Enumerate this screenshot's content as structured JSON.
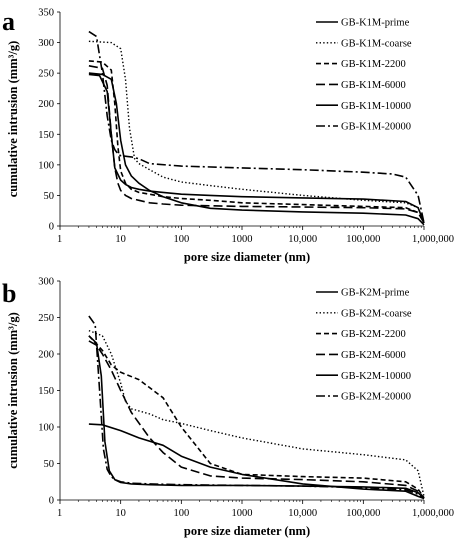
{
  "chart_data": [
    {
      "panel": "a",
      "type": "line",
      "xlabel": "pore size diameter (nm)",
      "ylabel": "cumulative intrusion (mm³/g)",
      "xscale": "log",
      "xlim": [
        1,
        1000000
      ],
      "ylim": [
        0,
        350
      ],
      "xticks": [
        1,
        10,
        100,
        1000,
        10000,
        100000,
        1000000
      ],
      "xtick_labels": [
        "1",
        "10",
        "100",
        "1000",
        "10,000",
        "100,000",
        "1,000,000"
      ],
      "yticks": [
        0,
        50,
        100,
        150,
        200,
        250,
        300,
        350
      ],
      "legend_position": "top-right",
      "grid": false,
      "series": [
        {
          "name": "GB-K1M-prime",
          "dash": "solid",
          "x": [
            3,
            5,
            7,
            8.5,
            10,
            12,
            15,
            20,
            30,
            50,
            100,
            300,
            1000,
            10000,
            100000,
            500000,
            800000,
            1000000
          ],
          "y": [
            250,
            248,
            240,
            200,
            140,
            100,
            82,
            70,
            58,
            48,
            38,
            29,
            26,
            23,
            21,
            18,
            12,
            2
          ]
        },
        {
          "name": "GB-K1M-coarse",
          "dash": "dot",
          "x": [
            3,
            7,
            10,
            12,
            14,
            17,
            20,
            30,
            50,
            100,
            300,
            1000,
            10000,
            100000,
            500000,
            800000,
            1000000
          ],
          "y": [
            302,
            300,
            290,
            240,
            160,
            110,
            102,
            92,
            80,
            72,
            66,
            60,
            50,
            42,
            38,
            30,
            5
          ]
        },
        {
          "name": "GB-K1M-2200",
          "dash": "medium-dash",
          "x": [
            3,
            5,
            7,
            8,
            9,
            10,
            12,
            15,
            20,
            30,
            50,
            100,
            300,
            1000,
            10000,
            100000,
            500000,
            800000,
            1000000
          ],
          "y": [
            270,
            268,
            255,
            200,
            130,
            90,
            70,
            60,
            55,
            52,
            48,
            45,
            42,
            38,
            35,
            32,
            30,
            22,
            5
          ]
        },
        {
          "name": "GB-K1M-6000",
          "dash": "long-dash",
          "x": [
            3,
            5,
            6,
            7,
            8,
            9,
            10,
            12,
            15,
            20,
            30,
            50,
            100,
            300,
            1000,
            10000,
            100000,
            500000,
            800000,
            1000000
          ],
          "y": [
            262,
            258,
            230,
            150,
            95,
            70,
            58,
            50,
            45,
            42,
            38,
            36,
            34,
            33,
            32,
            31,
            30,
            28,
            22,
            5
          ]
        },
        {
          "name": "GB-K1M-10000",
          "dash": "solid",
          "x": [
            3,
            4.5,
            6,
            7,
            8,
            10,
            12,
            15,
            20,
            30,
            50,
            100,
            300,
            1000,
            10000,
            100000,
            500000,
            800000,
            1000000
          ],
          "y": [
            248,
            246,
            220,
            150,
            95,
            75,
            68,
            63,
            60,
            57,
            55,
            52,
            50,
            48,
            46,
            44,
            40,
            30,
            5
          ]
        },
        {
          "name": "GB-K1M-20000",
          "dash": "dash-dot",
          "x": [
            3,
            4,
            5,
            6,
            7,
            8,
            9,
            10,
            15,
            20,
            30,
            100,
            1000,
            10000,
            100000,
            300000,
            500000,
            800000,
            1000000
          ],
          "y": [
            318,
            310,
            250,
            180,
            140,
            125,
            118,
            115,
            113,
            110,
            102,
            98,
            95,
            92,
            88,
            85,
            80,
            50,
            5
          ]
        }
      ]
    },
    {
      "panel": "b",
      "type": "line",
      "xlabel": "pore size diameter (nm)",
      "ylabel": "cumulative intrusion (mm³/g)",
      "xscale": "log",
      "xlim": [
        1,
        1000000
      ],
      "ylim": [
        0,
        300
      ],
      "xticks": [
        1,
        10,
        100,
        1000,
        10000,
        100000,
        1000000
      ],
      "xtick_labels": [
        "1",
        "10",
        "100",
        "1000",
        "10,000",
        "100,000",
        "1,000,000"
      ],
      "yticks": [
        0,
        50,
        100,
        150,
        200,
        250,
        300
      ],
      "legend_position": "top-right",
      "grid": false,
      "series": [
        {
          "name": "GB-K2M-prime",
          "dash": "solid",
          "x": [
            3,
            5,
            10,
            20,
            50,
            100,
            300,
            1000,
            10000,
            100000,
            500000,
            800000,
            1000000
          ],
          "y": [
            104,
            103,
            95,
            85,
            75,
            60,
            45,
            35,
            22,
            15,
            12,
            5,
            2
          ]
        },
        {
          "name": "GB-K2M-coarse",
          "dash": "dot",
          "x": [
            3,
            5,
            7,
            10,
            12,
            15,
            20,
            30,
            50,
            100,
            300,
            1000,
            10000,
            100000,
            500000,
            800000,
            1000000
          ],
          "y": [
            232,
            225,
            200,
            160,
            135,
            125,
            122,
            118,
            110,
            105,
            95,
            85,
            70,
            62,
            55,
            40,
            5
          ]
        },
        {
          "name": "GB-K2M-2200",
          "dash": "medium-dash",
          "x": [
            3,
            5,
            7,
            10,
            20,
            50,
            100,
            300,
            1000,
            10000,
            100000,
            500000,
            800000,
            1000000
          ],
          "y": [
            225,
            205,
            185,
            175,
            165,
            140,
            100,
            50,
            35,
            32,
            30,
            25,
            15,
            3
          ]
        },
        {
          "name": "GB-K2M-6000",
          "dash": "long-dash",
          "x": [
            3,
            4,
            5,
            7,
            10,
            15,
            30,
            50,
            100,
            300,
            1000,
            10000,
            100000,
            500000,
            800000,
            1000000
          ],
          "y": [
            218,
            212,
            200,
            178,
            150,
            120,
            85,
            65,
            45,
            33,
            30,
            28,
            25,
            20,
            12,
            3
          ]
        },
        {
          "name": "GB-K2M-10000",
          "dash": "solid",
          "x": [
            3,
            4,
            4.8,
            5.5,
            6.5,
            8,
            10,
            15,
            30,
            100,
            1000,
            10000,
            100000,
            500000,
            800000,
            1000000
          ],
          "y": [
            225,
            215,
            170,
            80,
            40,
            28,
            24,
            22,
            21,
            20,
            20,
            19,
            18,
            16,
            10,
            2
          ]
        },
        {
          "name": "GB-K2M-20000",
          "dash": "dash-dot",
          "x": [
            3,
            3.8,
            4.5,
            5.2,
            6,
            7,
            8,
            10,
            15,
            30,
            100,
            1000,
            10000,
            100000,
            500000,
            800000,
            1000000
          ],
          "y": [
            252,
            240,
            150,
            70,
            42,
            32,
            28,
            25,
            23,
            22,
            21,
            20,
            19,
            17,
            14,
            8,
            2
          ]
        }
      ]
    }
  ]
}
